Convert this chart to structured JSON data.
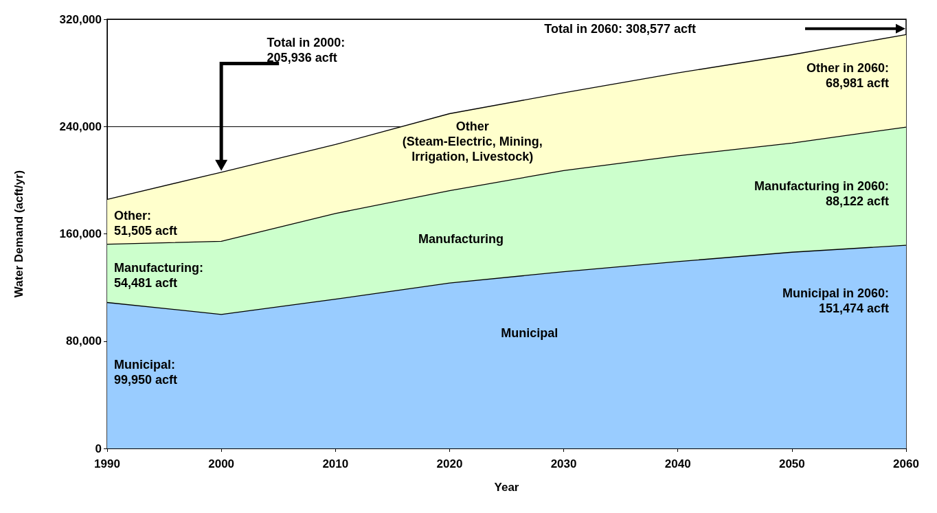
{
  "chart_data": {
    "type": "area",
    "stacked": true,
    "xlabel": "Year",
    "ylabel": "Water Demand (acft/yr)",
    "x": [
      1990,
      2000,
      2010,
      2020,
      2030,
      2040,
      2050,
      2060
    ],
    "xlim": [
      1990,
      2060
    ],
    "xticks": [
      1990,
      2000,
      2010,
      2020,
      2030,
      2040,
      2050,
      2060
    ],
    "ylim": [
      0,
      320000
    ],
    "yticks": [
      {
        "value": 0,
        "label": "0"
      },
      {
        "value": 80000,
        "label": "80,000"
      },
      {
        "value": 160000,
        "label": "160,000"
      },
      {
        "value": 240000,
        "label": "240,000"
      },
      {
        "value": 320000,
        "label": "320,000"
      }
    ],
    "grid": "y",
    "legend": false,
    "marker": "none",
    "line_style": "solid",
    "series": [
      {
        "name": "Municipal",
        "color": "#99ccff",
        "values": [
          108800,
          99950,
          111300,
          123300,
          131800,
          139300,
          146300,
          151474
        ]
      },
      {
        "name": "Manufacturing",
        "color": "#ccffcc",
        "values": [
          43500,
          54481,
          63900,
          68900,
          75400,
          78900,
          81300,
          88122
        ]
      },
      {
        "name": "Other\n(Steam-Electric, Mining,\nIrrigation, Livestock)",
        "color": "#ffffcc",
        "values": [
          33400,
          51505,
          51400,
          57400,
          57900,
          61800,
          65900,
          68981
        ]
      }
    ],
    "annotations": [
      "Total in 2000:\n205,936 acft",
      "Total in 2060: 308,577 acft",
      "Other in 2060:\n68,981 acft",
      "Manufacturing in 2060:\n88,122 acft",
      "Municipal in 2060:\n151,474 acft",
      "Other:\n51,505 acft",
      "Manufacturing:\n54,481 acft",
      "Municipal:\n99,950 acft"
    ]
  }
}
